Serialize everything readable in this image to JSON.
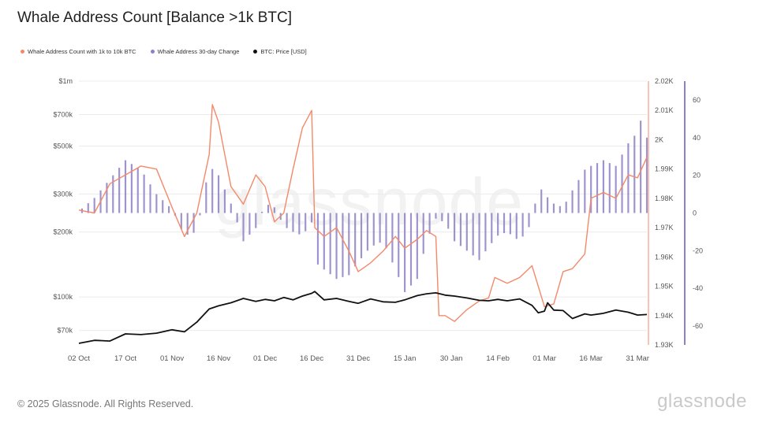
{
  "title": "Whale Address Count [Balance >1k BTC]",
  "legend": [
    {
      "label": "Whale Address Count with 1k to 10k BTC",
      "color": "#f4896a"
    },
    {
      "label": "Whale Address 30-day Change",
      "color": "#8e80c6"
    },
    {
      "label": "BTC: Price [USD]",
      "color": "#111111"
    }
  ],
  "footer": "© 2025 Glassnode. All Rights Reserved.",
  "logo": "glassnode",
  "watermark": "glassnode",
  "colors": {
    "count": "#f4896a",
    "change": "#8e80c6",
    "price": "#111111",
    "grid": "#ececec"
  },
  "chart_data": {
    "type": "line",
    "x_ticks": [
      "02 Oct",
      "17 Oct",
      "01 Nov",
      "16 Nov",
      "01 Dec",
      "16 Dec",
      "31 Dec",
      "15 Jan",
      "30 Jan",
      "14 Feb",
      "01 Mar",
      "16 Mar",
      "31 Mar"
    ],
    "left_axis": {
      "label": "BTC: Price [USD]",
      "scale": "log",
      "ticks": [
        "$1m",
        "$700k",
        "$500k",
        "$300k",
        "$200k",
        "$100k",
        "$70k"
      ],
      "tick_values": [
        1000000,
        700000,
        500000,
        300000,
        200000,
        100000,
        70000
      ]
    },
    "right_axis_1": {
      "label": "Whale Address Count with 1k to 10k BTC",
      "range": [
        1930,
        2020
      ],
      "ticks": [
        "2.02K",
        "2.01K",
        "2K",
        "1.99K",
        "1.98K",
        "1.97K",
        "1.96K",
        "1.95K",
        "1.94K",
        "1.93K"
      ],
      "tick_values": [
        2020,
        2010,
        2000,
        1990,
        1980,
        1970,
        1960,
        1950,
        1940,
        1930
      ]
    },
    "right_axis_2": {
      "label": "Whale Address 30-day Change",
      "range": [
        -70,
        70
      ],
      "ticks": [
        "60",
        "40",
        "20",
        "0",
        "-20",
        "-40",
        "-60"
      ],
      "tick_values": [
        60,
        40,
        20,
        0,
        -20,
        -40,
        -60
      ]
    },
    "series": [
      {
        "name": "Whale Address Count with 1k to 10k BTC",
        "axis": "right_axis_1",
        "points": [
          [
            "02 Oct",
            1976
          ],
          [
            "07 Oct",
            1975
          ],
          [
            "12 Oct",
            1985
          ],
          [
            "17 Oct",
            1988
          ],
          [
            "22 Oct",
            1991
          ],
          [
            "27 Oct",
            1990
          ],
          [
            "01 Nov",
            1977
          ],
          [
            "05 Nov",
            1967
          ],
          [
            "09 Nov",
            1975
          ],
          [
            "13 Nov",
            1995
          ],
          [
            "14 Nov",
            2012
          ],
          [
            "15 Nov",
            2009
          ],
          [
            "16 Nov",
            2006
          ],
          [
            "20 Nov",
            1984
          ],
          [
            "24 Nov",
            1978
          ],
          [
            "28 Nov",
            1988
          ],
          [
            "01 Dec",
            1984
          ],
          [
            "04 Dec",
            1972
          ],
          [
            "07 Dec",
            1975
          ],
          [
            "10 Dec",
            1990
          ],
          [
            "13 Dec",
            2004
          ],
          [
            "16 Dec",
            2010
          ],
          [
            "17 Dec",
            1970
          ],
          [
            "20 Dec",
            1967
          ],
          [
            "24 Dec",
            1970
          ],
          [
            "28 Dec",
            1962
          ],
          [
            "31 Dec",
            1955
          ],
          [
            "04 Jan",
            1958
          ],
          [
            "08 Jan",
            1962
          ],
          [
            "12 Jan",
            1967
          ],
          [
            "15 Jan",
            1963
          ],
          [
            "19 Jan",
            1966
          ],
          [
            "22 Jan",
            1969
          ],
          [
            "25 Jan",
            1967
          ],
          [
            "26 Jan",
            1940
          ],
          [
            "28 Jan",
            1940
          ],
          [
            "31 Jan",
            1938
          ],
          [
            "04 Feb",
            1942
          ],
          [
            "08 Feb",
            1945
          ],
          [
            "11 Feb",
            1946
          ],
          [
            "13 Feb",
            1953
          ],
          [
            "17 Feb",
            1951
          ],
          [
            "21 Feb",
            1953
          ],
          [
            "25 Feb",
            1957
          ],
          [
            "27 Feb",
            1950
          ],
          [
            "01 Mar",
            1943
          ],
          [
            "04 Mar",
            1944
          ],
          [
            "07 Mar",
            1955
          ],
          [
            "10 Mar",
            1956
          ],
          [
            "14 Mar",
            1961
          ],
          [
            "16 Mar",
            1980
          ],
          [
            "20 Mar",
            1982
          ],
          [
            "24 Mar",
            1980
          ],
          [
            "28 Mar",
            1988
          ],
          [
            "31 Mar",
            1987
          ],
          [
            "03 Apr",
            1994
          ]
        ]
      },
      {
        "name": "Whale Address 30-day Change",
        "axis": "right_axis_2",
        "type": "bar",
        "points": [
          [
            "02 Oct",
            1
          ],
          [
            "07 Oct",
            8
          ],
          [
            "12 Oct",
            18
          ],
          [
            "17 Oct",
            28
          ],
          [
            "22 Oct",
            23
          ],
          [
            "27 Oct",
            10
          ],
          [
            "01 Nov",
            2
          ],
          [
            "05 Nov",
            -12
          ],
          [
            "09 Nov",
            -10
          ],
          [
            "13 Nov",
            25
          ],
          [
            "16 Nov",
            20
          ],
          [
            "20 Nov",
            5
          ],
          [
            "24 Nov",
            -15
          ],
          [
            "28 Nov",
            -8
          ],
          [
            "01 Dec",
            5
          ],
          [
            "04 Dec",
            3
          ],
          [
            "07 Dec",
            -7
          ],
          [
            "10 Dec",
            -10
          ],
          [
            "13 Dec",
            -12
          ],
          [
            "16 Dec",
            -5
          ],
          [
            "17 Dec",
            -26
          ],
          [
            "20 Dec",
            -30
          ],
          [
            "24 Dec",
            -35
          ],
          [
            "28 Dec",
            -33
          ],
          [
            "31 Dec",
            -26
          ],
          [
            "04 Jan",
            -18
          ],
          [
            "08 Jan",
            -15
          ],
          [
            "12 Jan",
            -30
          ],
          [
            "15 Jan",
            -42
          ],
          [
            "19 Jan",
            -35
          ],
          [
            "22 Jan",
            -15
          ],
          [
            "25 Jan",
            -3
          ],
          [
            "28 Jan",
            -5
          ],
          [
            "31 Jan",
            -15
          ],
          [
            "04 Feb",
            -20
          ],
          [
            "08 Feb",
            -25
          ],
          [
            "11 Feb",
            -18
          ],
          [
            "14 Feb",
            -12
          ],
          [
            "17 Feb",
            -10
          ],
          [
            "21 Feb",
            -15
          ],
          [
            "25 Feb",
            -5
          ],
          [
            "27 Feb",
            15
          ],
          [
            "01 Mar",
            10
          ],
          [
            "04 Mar",
            5
          ],
          [
            "07 Mar",
            3
          ],
          [
            "10 Mar",
            12
          ],
          [
            "14 Mar",
            23
          ],
          [
            "16 Mar",
            25
          ],
          [
            "20 Mar",
            28
          ],
          [
            "24 Mar",
            25
          ],
          [
            "28 Mar",
            37
          ],
          [
            "31 Mar",
            43
          ],
          [
            "02 Apr",
            55
          ],
          [
            "03 Apr",
            40
          ]
        ]
      },
      {
        "name": "BTC: Price [USD]",
        "axis": "left_axis",
        "points": [
          [
            "02 Oct",
            61000
          ],
          [
            "07 Oct",
            63000
          ],
          [
            "12 Oct",
            62500
          ],
          [
            "17 Oct",
            67500
          ],
          [
            "22 Oct",
            67000
          ],
          [
            "27 Oct",
            68000
          ],
          [
            "01 Nov",
            70500
          ],
          [
            "05 Nov",
            69000
          ],
          [
            "09 Nov",
            76500
          ],
          [
            "13 Nov",
            88000
          ],
          [
            "16 Nov",
            91000
          ],
          [
            "20 Nov",
            94000
          ],
          [
            "24 Nov",
            98500
          ],
          [
            "28 Nov",
            95500
          ],
          [
            "01 Dec",
            97500
          ],
          [
            "04 Dec",
            96000
          ],
          [
            "07 Dec",
            99500
          ],
          [
            "10 Dec",
            97000
          ],
          [
            "13 Dec",
            101000
          ],
          [
            "16 Dec",
            104000
          ],
          [
            "17 Dec",
            106000
          ],
          [
            "20 Dec",
            97000
          ],
          [
            "24 Dec",
            98500
          ],
          [
            "28 Dec",
            95500
          ],
          [
            "31 Dec",
            93500
          ],
          [
            "04 Jan",
            98000
          ],
          [
            "08 Jan",
            95000
          ],
          [
            "12 Jan",
            94500
          ],
          [
            "15 Jan",
            97000
          ],
          [
            "19 Jan",
            101500
          ],
          [
            "22 Jan",
            103500
          ],
          [
            "25 Jan",
            104500
          ],
          [
            "28 Jan",
            102000
          ],
          [
            "31 Jan",
            101000
          ],
          [
            "04 Feb",
            99000
          ],
          [
            "08 Feb",
            96500
          ],
          [
            "11 Feb",
            96000
          ],
          [
            "14 Feb",
            97500
          ],
          [
            "17 Feb",
            96000
          ],
          [
            "21 Feb",
            98000
          ],
          [
            "25 Feb",
            91500
          ],
          [
            "27 Feb",
            84500
          ],
          [
            "01 Mar",
            86000
          ],
          [
            "02 Mar",
            94000
          ],
          [
            "04 Mar",
            87000
          ],
          [
            "07 Mar",
            86500
          ],
          [
            "10 Mar",
            79500
          ],
          [
            "14 Mar",
            83500
          ],
          [
            "16 Mar",
            82500
          ],
          [
            "20 Mar",
            84000
          ],
          [
            "24 Mar",
            87000
          ],
          [
            "28 Mar",
            85000
          ],
          [
            "31 Mar",
            82500
          ],
          [
            "03 Apr",
            83000
          ]
        ]
      }
    ]
  }
}
